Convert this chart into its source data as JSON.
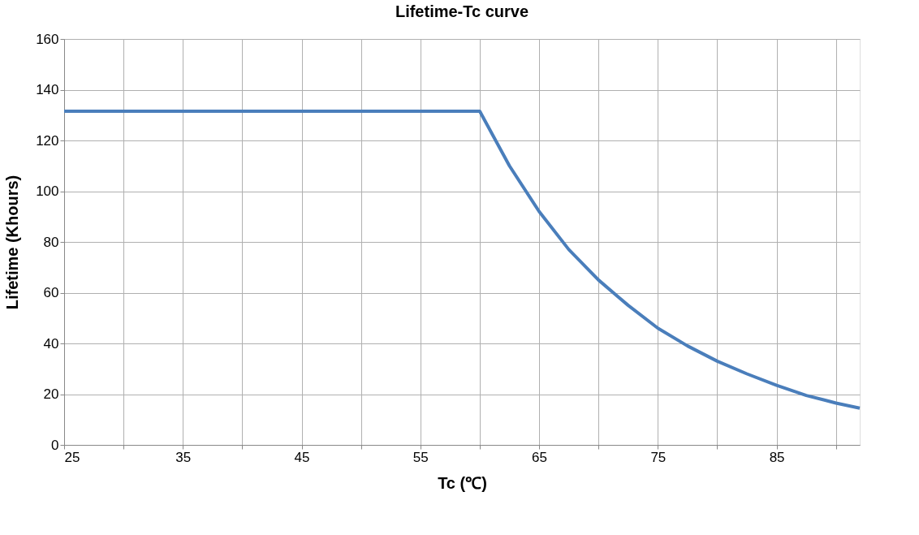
{
  "chart_data": {
    "type": "line",
    "title": "Lifetime-Tc  curve",
    "xlabel": "Tc (℃)",
    "ylabel": "Lifetime (Khours)",
    "x": [
      25,
      60,
      62.5,
      65,
      67.5,
      70,
      72.5,
      75,
      77.5,
      80,
      82.5,
      85,
      87.5,
      90,
      92
    ],
    "series": [
      {
        "color": "#4a7ebb",
        "values": [
          131.5,
          131.5,
          110,
          92,
          77,
          65,
          55,
          46,
          39,
          33,
          28,
          23.5,
          19.5,
          16.5,
          14.5
        ]
      }
    ],
    "xlim": [
      25,
      92
    ],
    "ylim": [
      0,
      160
    ],
    "xticks": [
      25,
      {
        "value": 30,
        "label": null
      },
      35,
      {
        "value": 40,
        "label": null
      },
      45,
      {
        "value": 50,
        "label": null
      },
      55,
      {
        "value": 60,
        "label": null
      },
      65,
      {
        "value": 70,
        "label": null
      },
      75,
      {
        "value": 80,
        "label": null
      },
      85,
      {
        "value": 90,
        "label": null
      }
    ],
    "yticks": [
      0,
      20,
      40,
      60,
      80,
      100,
      120,
      140,
      160
    ],
    "grid": true,
    "marker": "none",
    "line_style": "solid",
    "legend": false
  }
}
